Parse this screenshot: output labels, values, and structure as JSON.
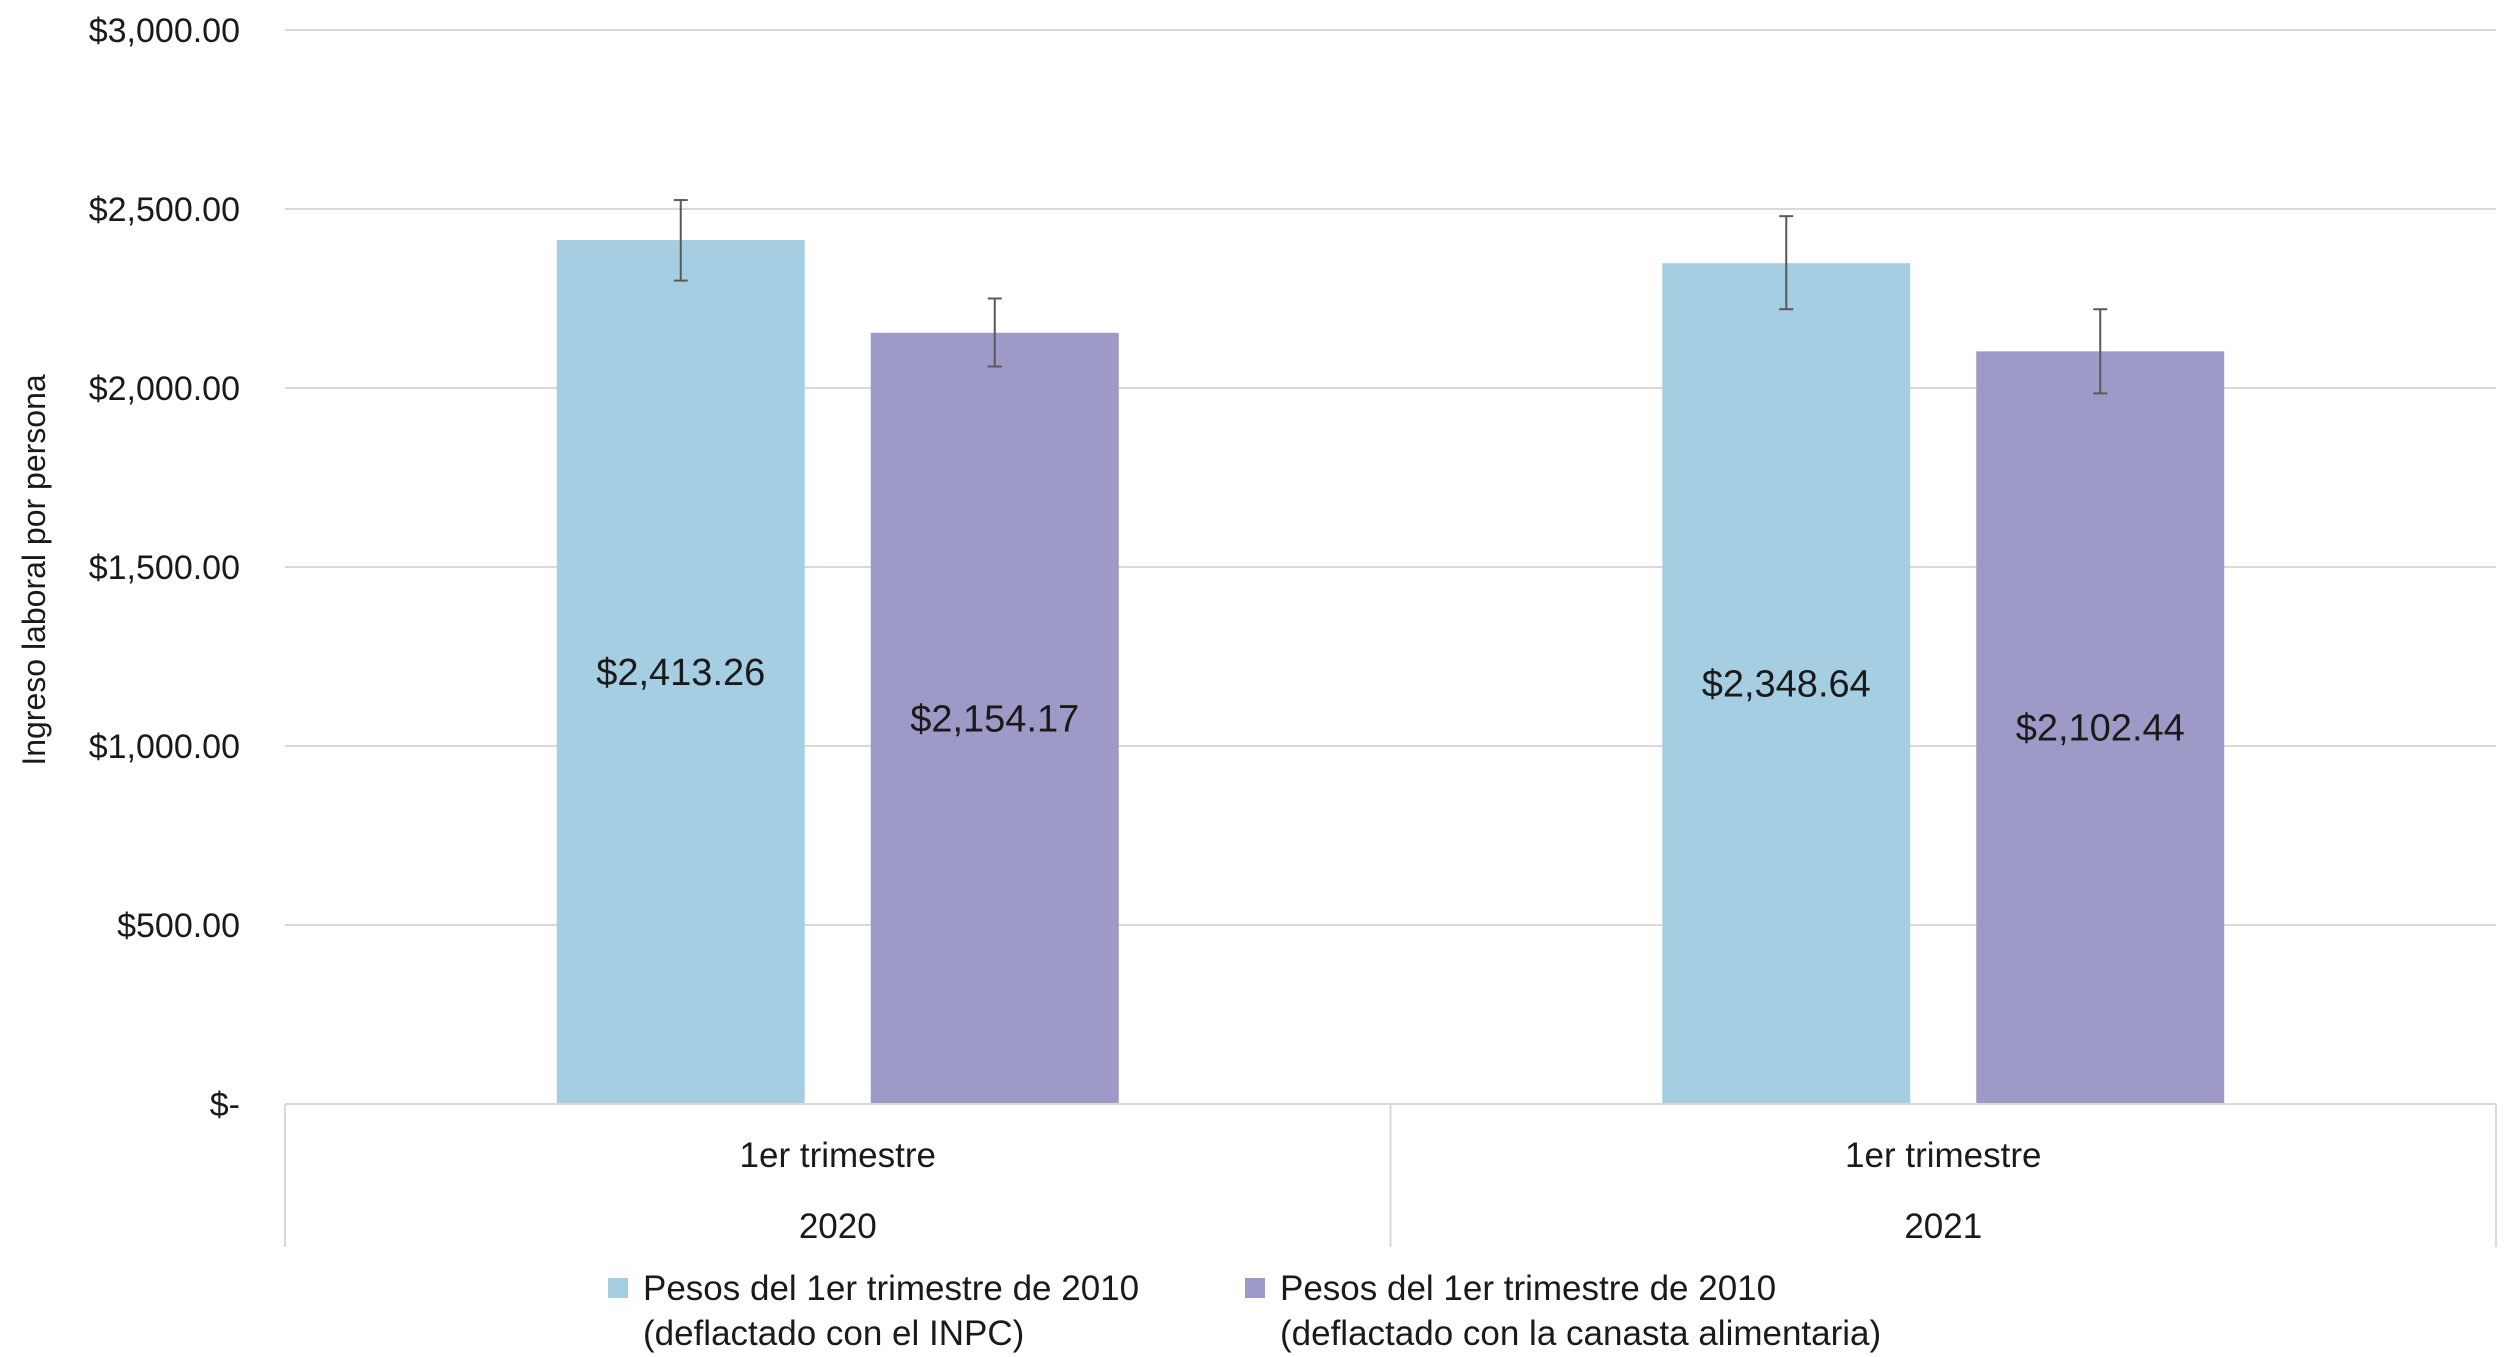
{
  "chart_data": {
    "type": "bar",
    "title": "",
    "xlabel": "",
    "ylabel": "Ingreso laboral por persona",
    "ylim": [
      0,
      3000
    ],
    "yticks": [
      0,
      500,
      1000,
      1500,
      2000,
      2500,
      3000
    ],
    "ytick_labels": [
      "$-",
      "$500.00",
      "$1,000.00",
      "$1,500.00",
      "$2,000.00",
      "$2,500.00",
      "$3,000.00"
    ],
    "grid": true,
    "legend_position": "bottom",
    "groups": [
      {
        "period": "1er trimestre",
        "year": "2020"
      },
      {
        "period": "1er trimestre",
        "year": "2021"
      }
    ],
    "series": [
      {
        "name": "Pesos del 1er trimestre de 2010",
        "name_line2": "(deflactado con el INPC)",
        "color": "#a6cee3",
        "values": [
          2413.26,
          2348.64
        ],
        "labels": [
          "$2,413.26",
          "$2,348.64"
        ],
        "error_low": [
          2300,
          2220
        ],
        "error_high": [
          2525,
          2480
        ]
      },
      {
        "name": "Pesos del 1er trimestre de 2010",
        "name_line2": "(deflactado con la canasta alimentaria)",
        "color": "#9e9ac8",
        "values": [
          2154.17,
          2102.44
        ],
        "labels": [
          "$2,154.17",
          "$2,102.44"
        ],
        "error_low": [
          2060,
          1985
        ],
        "error_high": [
          2250,
          2220
        ]
      }
    ]
  }
}
